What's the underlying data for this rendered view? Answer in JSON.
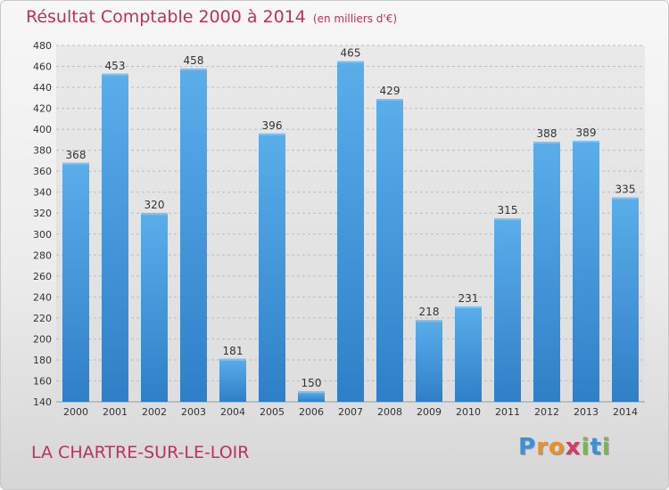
{
  "title": "Résultat Comptable 2000 à 2014",
  "unit": "(en milliers d'€)",
  "town": "LA CHARTRE-SUR-LE-LOIR",
  "logo": {
    "letters": [
      "P",
      "r",
      "o",
      "x",
      "i",
      "t",
      "i"
    ],
    "colors": [
      "#3d8fd6",
      "#e8902a",
      "#e8902a",
      "#d23a6a",
      "#7ab648",
      "#3d8fd6",
      "#7ab648"
    ]
  },
  "chart_data": {
    "type": "bar",
    "categories": [
      "2000",
      "2001",
      "2002",
      "2003",
      "2004",
      "2005",
      "2006",
      "2007",
      "2008",
      "2009",
      "2010",
      "2011",
      "2012",
      "2013",
      "2014"
    ],
    "values": [
      368,
      453,
      320,
      458,
      181,
      396,
      150,
      465,
      429,
      218,
      231,
      315,
      388,
      389,
      335
    ],
    "ylim": [
      140,
      480
    ],
    "yticks": [
      140,
      160,
      180,
      200,
      220,
      240,
      260,
      280,
      300,
      320,
      340,
      360,
      380,
      400,
      420,
      440,
      460,
      480
    ],
    "grid": true,
    "bar_color": "#4a9fe0"
  }
}
